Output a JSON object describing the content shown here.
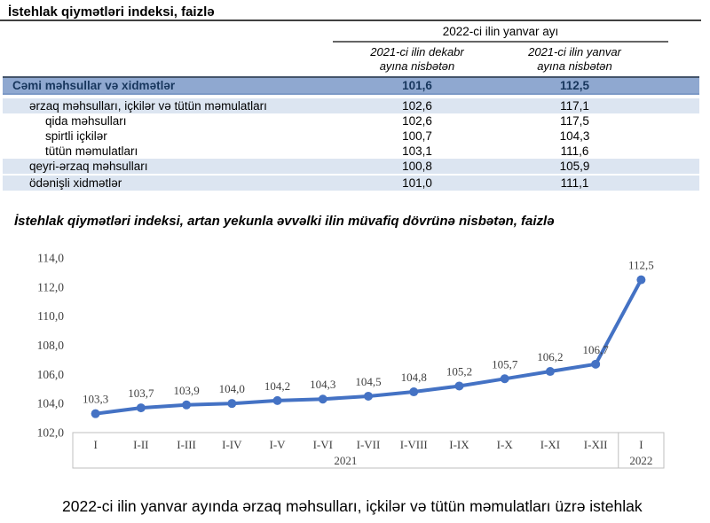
{
  "page": {
    "title": "İstehlak qiymətləri indeksi, faizlə",
    "chart_title": "İstehlak qiymətləri indeksi, artan yekunla əvvəlki ilin müvafiq dövrünə nisbətən, faizlə",
    "footer_text": "2022-ci ilin yanvar ayında ərzaq məhsulları, içkilər və tütün məmulatları üzrə istehlak"
  },
  "table": {
    "span_header": "2022-ci ilin yanvar ayı",
    "col_headers": [
      "2021-ci ilin dekabr\nayına nisbətən",
      "2021-ci ilin yanvar\nayına nisbətən"
    ],
    "rows": [
      {
        "label": "Cəmi məhsullar və xidmətlər",
        "vs_december": "101,6",
        "vs_january": "112,5",
        "level": 0
      },
      {
        "label": "ərzaq məhsulları, içkilər və tütün məmulatları",
        "vs_december": "102,6",
        "vs_january": "117,1",
        "level": 1
      },
      {
        "label": "qida məhsulları",
        "vs_december": "102,6",
        "vs_january": "117,5",
        "level": 2
      },
      {
        "label": "spirtli içkilər",
        "vs_december": "100,7",
        "vs_january": "104,3",
        "level": 2
      },
      {
        "label": "tütün məmulatları",
        "vs_december": "103,1",
        "vs_january": "111,6",
        "level": 2
      },
      {
        "label": "qeyri-ərzaq məhsulları",
        "vs_december": "100,8",
        "vs_january": "105,9",
        "level": 1
      },
      {
        "label": "ödənişli xidmətlər",
        "vs_december": "101,0",
        "vs_january": "111,1",
        "level": 1
      }
    ]
  },
  "chart_data": {
    "type": "line",
    "title": "İstehlak qiymətləri indeksi, artan yekunla əvvəlki ilin müvafiq dövrünə nisbətən, faizlə",
    "categories": [
      "I",
      "I-II",
      "I-III",
      "I-IV",
      "I-V",
      "I-VI",
      "I-VII",
      "I-VIII",
      "I-IX",
      "I-X",
      "I-XI",
      "I-XII",
      "I"
    ],
    "year_groups": [
      {
        "label": "2021",
        "span": 12
      },
      {
        "label": "2022",
        "span": 1
      }
    ],
    "values": [
      103.3,
      103.7,
      103.9,
      104.0,
      104.2,
      104.3,
      104.5,
      104.8,
      105.2,
      105.7,
      106.2,
      106.7,
      112.5
    ],
    "point_labels": [
      "103,3",
      "103,7",
      "103,9",
      "104,0",
      "104,2",
      "104,3",
      "104,5",
      "104,8",
      "105,2",
      "105,7",
      "106,2",
      "106,7",
      "112,5"
    ],
    "ylim": [
      102,
      114
    ],
    "ytick_step": 2,
    "ytick_labels": [
      "102,0",
      "104,0",
      "106,0",
      "108,0",
      "110,0",
      "112,0",
      "114,0"
    ],
    "grid": false,
    "legend": false,
    "line_color": "#4472C4",
    "marker": "circle"
  },
  "colors": {
    "rule_dark": "#404040",
    "rule_mid": "#666666",
    "row_total_bg": "#8FA8D0",
    "row_total_border_top": "#44546A",
    "row_total_border_bottom": "#7C99C6",
    "row_total_text": "#17365D",
    "row_shade_bg": "#DCE5F1",
    "chart_line": "#4472C4",
    "chart_text": "#404040",
    "axis_box": "#BFBFBF"
  }
}
